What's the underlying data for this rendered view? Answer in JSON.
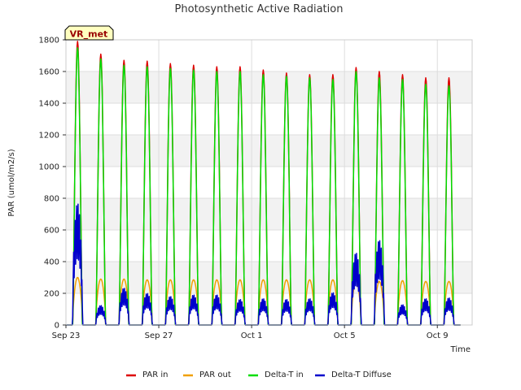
{
  "chart_data": {
    "type": "line",
    "title": "Photosynthetic Active Radiation",
    "xlabel": "Time",
    "ylabel": "PAR (umol/m2/s)",
    "ylim": [
      0,
      1800
    ],
    "yticks": [
      0,
      200,
      400,
      600,
      800,
      1000,
      1200,
      1400,
      1600,
      1800
    ],
    "xlim": [
      "2023-09-23",
      "2023-10-10 12:00"
    ],
    "xticks": [
      {
        "date": "2023-09-23",
        "label": "Sep 23"
      },
      {
        "date": "2023-09-27",
        "label": "Sep 27"
      },
      {
        "date": "2023-10-01",
        "label": "Oct 1"
      },
      {
        "date": "2023-10-05",
        "label": "Oct 5"
      },
      {
        "date": "2023-10-09",
        "label": "Oct 9"
      }
    ],
    "grid": true,
    "legend_position": "bottom-center",
    "station_label": "VR_met",
    "days": [
      "Sep 23",
      "Sep 24",
      "Sep 25",
      "Sep 26",
      "Sep 27",
      "Sep 28",
      "Sep 29",
      "Sep 30",
      "Oct 1",
      "Oct 2",
      "Oct 3",
      "Oct 4",
      "Oct 5",
      "Oct 6",
      "Oct 7",
      "Oct 8",
      "Oct 9"
    ],
    "series": [
      {
        "name": "PAR in",
        "color": "#dd0000",
        "daily_peak": [
          1790,
          1710,
          1670,
          1665,
          1650,
          1640,
          1630,
          1630,
          1610,
          1590,
          1580,
          1580,
          1625,
          1600,
          1580,
          1560,
          1560
        ]
      },
      {
        "name": "PAR out",
        "color": "#f0a000",
        "daily_peak": [
          300,
          290,
          290,
          285,
          285,
          285,
          285,
          285,
          285,
          285,
          285,
          285,
          280,
          275,
          280,
          275,
          275
        ]
      },
      {
        "name": "Delta-T in",
        "color": "#00dd00",
        "daily_peak": [
          1750,
          1680,
          1640,
          1630,
          1620,
          1610,
          1600,
          1600,
          1580,
          1570,
          1560,
          1550,
          1600,
          1560,
          1550,
          1520,
          1510
        ]
      },
      {
        "name": "Delta-T Diffuse",
        "color": "#0000cc",
        "daily_peak": [
          810,
          130,
          245,
          210,
          190,
          200,
          200,
          170,
          175,
          170,
          175,
          215,
          480,
          565,
          135,
          175,
          180
        ]
      }
    ]
  }
}
